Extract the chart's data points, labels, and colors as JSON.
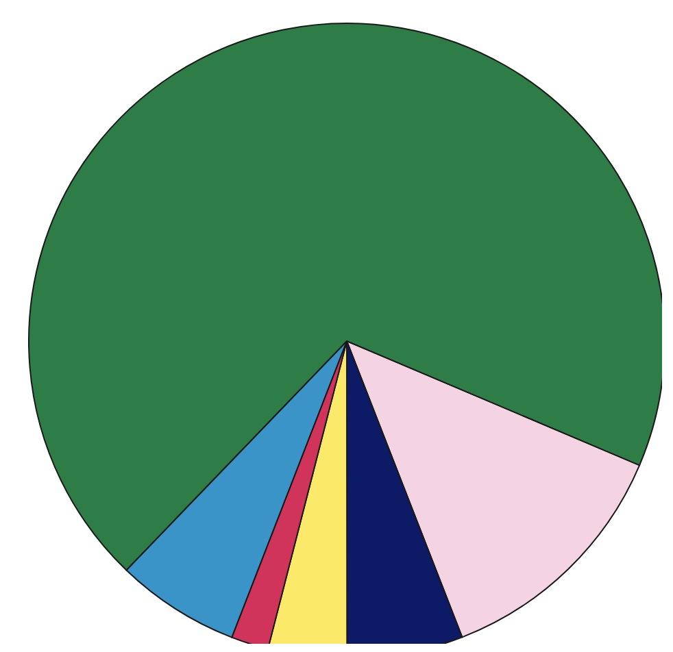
{
  "chart_data": {
    "type": "pie",
    "categories": [
      null,
      null,
      null,
      null,
      null,
      null
    ],
    "values": [
      12.7,
      5.9,
      4.0,
      1.9,
      6.3,
      69.2
    ],
    "colors": [
      "#f4d3e2",
      "#0d1a66",
      "#fbe96a",
      "#d0345a",
      "#3a94c8",
      "#2e7d46"
    ]
  }
}
